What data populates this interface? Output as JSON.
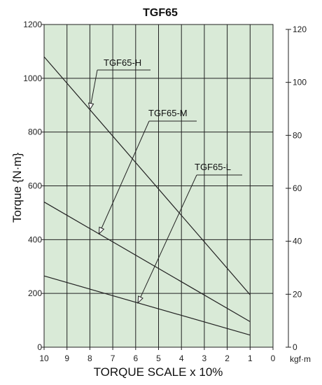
{
  "chart_data": {
    "type": "line",
    "title": "TGF65",
    "xlabel": "TORQUE SCALE x 10%",
    "ylabel": "Torque {N·m}",
    "y2label": "kgf·m",
    "xlim": [
      10,
      0
    ],
    "ylim": [
      0,
      1200
    ],
    "y2lim": [
      0,
      120
    ],
    "x_ticks": [
      "10",
      "9",
      "8",
      "7",
      "6",
      "5",
      "4",
      "3",
      "2",
      "1",
      "0"
    ],
    "y_ticks": [
      "0",
      "200",
      "400",
      "600",
      "800",
      "1000",
      "1200"
    ],
    "y2_ticks": [
      "0",
      "20",
      "40",
      "60",
      "80",
      "100",
      "120"
    ],
    "grid": true,
    "background": "#d9ead7",
    "line_color": "#222222",
    "series": [
      {
        "name": "TGF65-H",
        "x": [
          10,
          1
        ],
        "y": [
          1080,
          195
        ]
      },
      {
        "name": "TGF65-M",
        "x": [
          10,
          1
        ],
        "y": [
          540,
          95
        ]
      },
      {
        "name": "TGF65-L",
        "x": [
          10,
          1
        ],
        "y": [
          265,
          45
        ]
      }
    ],
    "annotations": [
      {
        "text": "TGF65-H",
        "series": 0
      },
      {
        "text": "TGF65-M",
        "series": 1
      },
      {
        "text": "TGF65-L",
        "series": 2
      }
    ]
  }
}
